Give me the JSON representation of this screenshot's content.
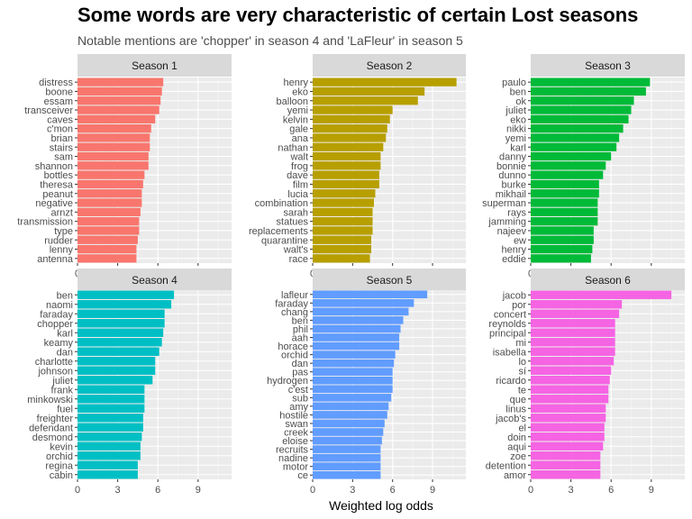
{
  "title": "Some words are very characteristic of certain Lost seasons",
  "subtitle": "Notable mentions are 'chopper' in season 4 and 'LaFleur' in season 5",
  "chart_data": {
    "type": "bar",
    "orientation": "horizontal",
    "faceted": true,
    "xlabel": "Weighted log odds",
    "ylabel": "",
    "xlim": [
      0,
      11.5
    ],
    "x_ticks": [
      0,
      3,
      6,
      9
    ],
    "panels": [
      {
        "name": "Season 1",
        "color": "#F8766D",
        "categories": [
          "distress",
          "boone",
          "essam",
          "transceiver",
          "caves",
          "c'mon",
          "brian",
          "stairs",
          "sam",
          "shannon",
          "bottles",
          "theresa",
          "peanut",
          "negative",
          "arnzt",
          "transmission",
          "type",
          "rudder",
          "lenny",
          "antenna"
        ],
        "values": [
          6.4,
          6.3,
          6.2,
          6.1,
          5.8,
          5.5,
          5.4,
          5.4,
          5.3,
          5.3,
          5.0,
          4.9,
          4.8,
          4.8,
          4.7,
          4.6,
          4.6,
          4.5,
          4.4,
          4.4
        ]
      },
      {
        "name": "Season 2",
        "color": "#B79F00",
        "categories": [
          "henry",
          "eko",
          "balloon",
          "yemi",
          "kelvin",
          "gale",
          "ana",
          "nathan",
          "walt",
          "frog",
          "dave",
          "film",
          "lucia",
          "combination",
          "sarah",
          "statues",
          "replacements",
          "quarantine",
          "walt's",
          "race"
        ],
        "values": [
          10.8,
          8.4,
          7.9,
          6.0,
          5.8,
          5.6,
          5.5,
          5.3,
          5.1,
          5.1,
          5.0,
          5.0,
          4.7,
          4.6,
          4.5,
          4.5,
          4.5,
          4.4,
          4.4,
          4.3
        ]
      },
      {
        "name": "Season 3",
        "color": "#00BA38",
        "categories": [
          "paulo",
          "ben",
          "ok",
          "juliet",
          "eko",
          "nikki",
          "yemi",
          "karl",
          "danny",
          "bonnie",
          "dunno",
          "burke",
          "mikhail",
          "superman",
          "rays",
          "jamming",
          "najeev",
          "ew",
          "henry",
          "eddie"
        ],
        "values": [
          8.9,
          8.6,
          7.7,
          7.5,
          7.3,
          6.9,
          6.6,
          6.4,
          6.0,
          5.6,
          5.4,
          5.1,
          5.1,
          5.0,
          5.0,
          5.0,
          4.7,
          4.7,
          4.6,
          4.5
        ]
      },
      {
        "name": "Season 4",
        "color": "#00BFC4",
        "categories": [
          "ben",
          "naomi",
          "faraday",
          "chopper",
          "karl",
          "keamy",
          "dan",
          "charlotte",
          "johnson",
          "juliet",
          "frank",
          "minkowski",
          "fuel",
          "freighter",
          "defendant",
          "desmond",
          "kevin",
          "orchid",
          "regina",
          "cabin"
        ],
        "values": [
          7.2,
          7.0,
          6.5,
          6.5,
          6.4,
          6.3,
          6.1,
          5.8,
          5.8,
          5.6,
          5.0,
          5.0,
          5.0,
          4.9,
          4.9,
          4.8,
          4.7,
          4.7,
          4.5,
          4.5
        ]
      },
      {
        "name": "Season 5",
        "color": "#619CFF",
        "categories": [
          "lafleur",
          "faraday",
          "chang",
          "ben",
          "phil",
          "aah",
          "horace",
          "orchid",
          "dan",
          "pas",
          "hydrogen",
          "c'est",
          "sub",
          "amy",
          "hostile",
          "swan",
          "creek",
          "eloise",
          "recruits",
          "nadine",
          "motor",
          "ce"
        ],
        "values": [
          8.6,
          7.6,
          7.2,
          6.8,
          6.6,
          6.5,
          6.5,
          6.2,
          6.1,
          6.0,
          6.0,
          6.0,
          5.9,
          5.7,
          5.6,
          5.4,
          5.3,
          5.2,
          5.1,
          5.1,
          5.1,
          5.1
        ]
      },
      {
        "name": "Season 6",
        "color": "#F564E3",
        "categories": [
          "jacob",
          "por",
          "concert",
          "reynolds",
          "principal",
          "mi",
          "isabella",
          "lo",
          "sí",
          "ricardo",
          "te",
          "que",
          "linus",
          "jacob's",
          "el",
          "doin",
          "aqui",
          "zoe",
          "detention",
          "amor"
        ],
        "values": [
          10.5,
          6.8,
          6.6,
          6.3,
          6.3,
          6.3,
          6.3,
          6.2,
          6.0,
          5.9,
          5.8,
          5.8,
          5.6,
          5.6,
          5.5,
          5.5,
          5.4,
          5.2,
          5.2,
          5.2
        ]
      }
    ]
  }
}
